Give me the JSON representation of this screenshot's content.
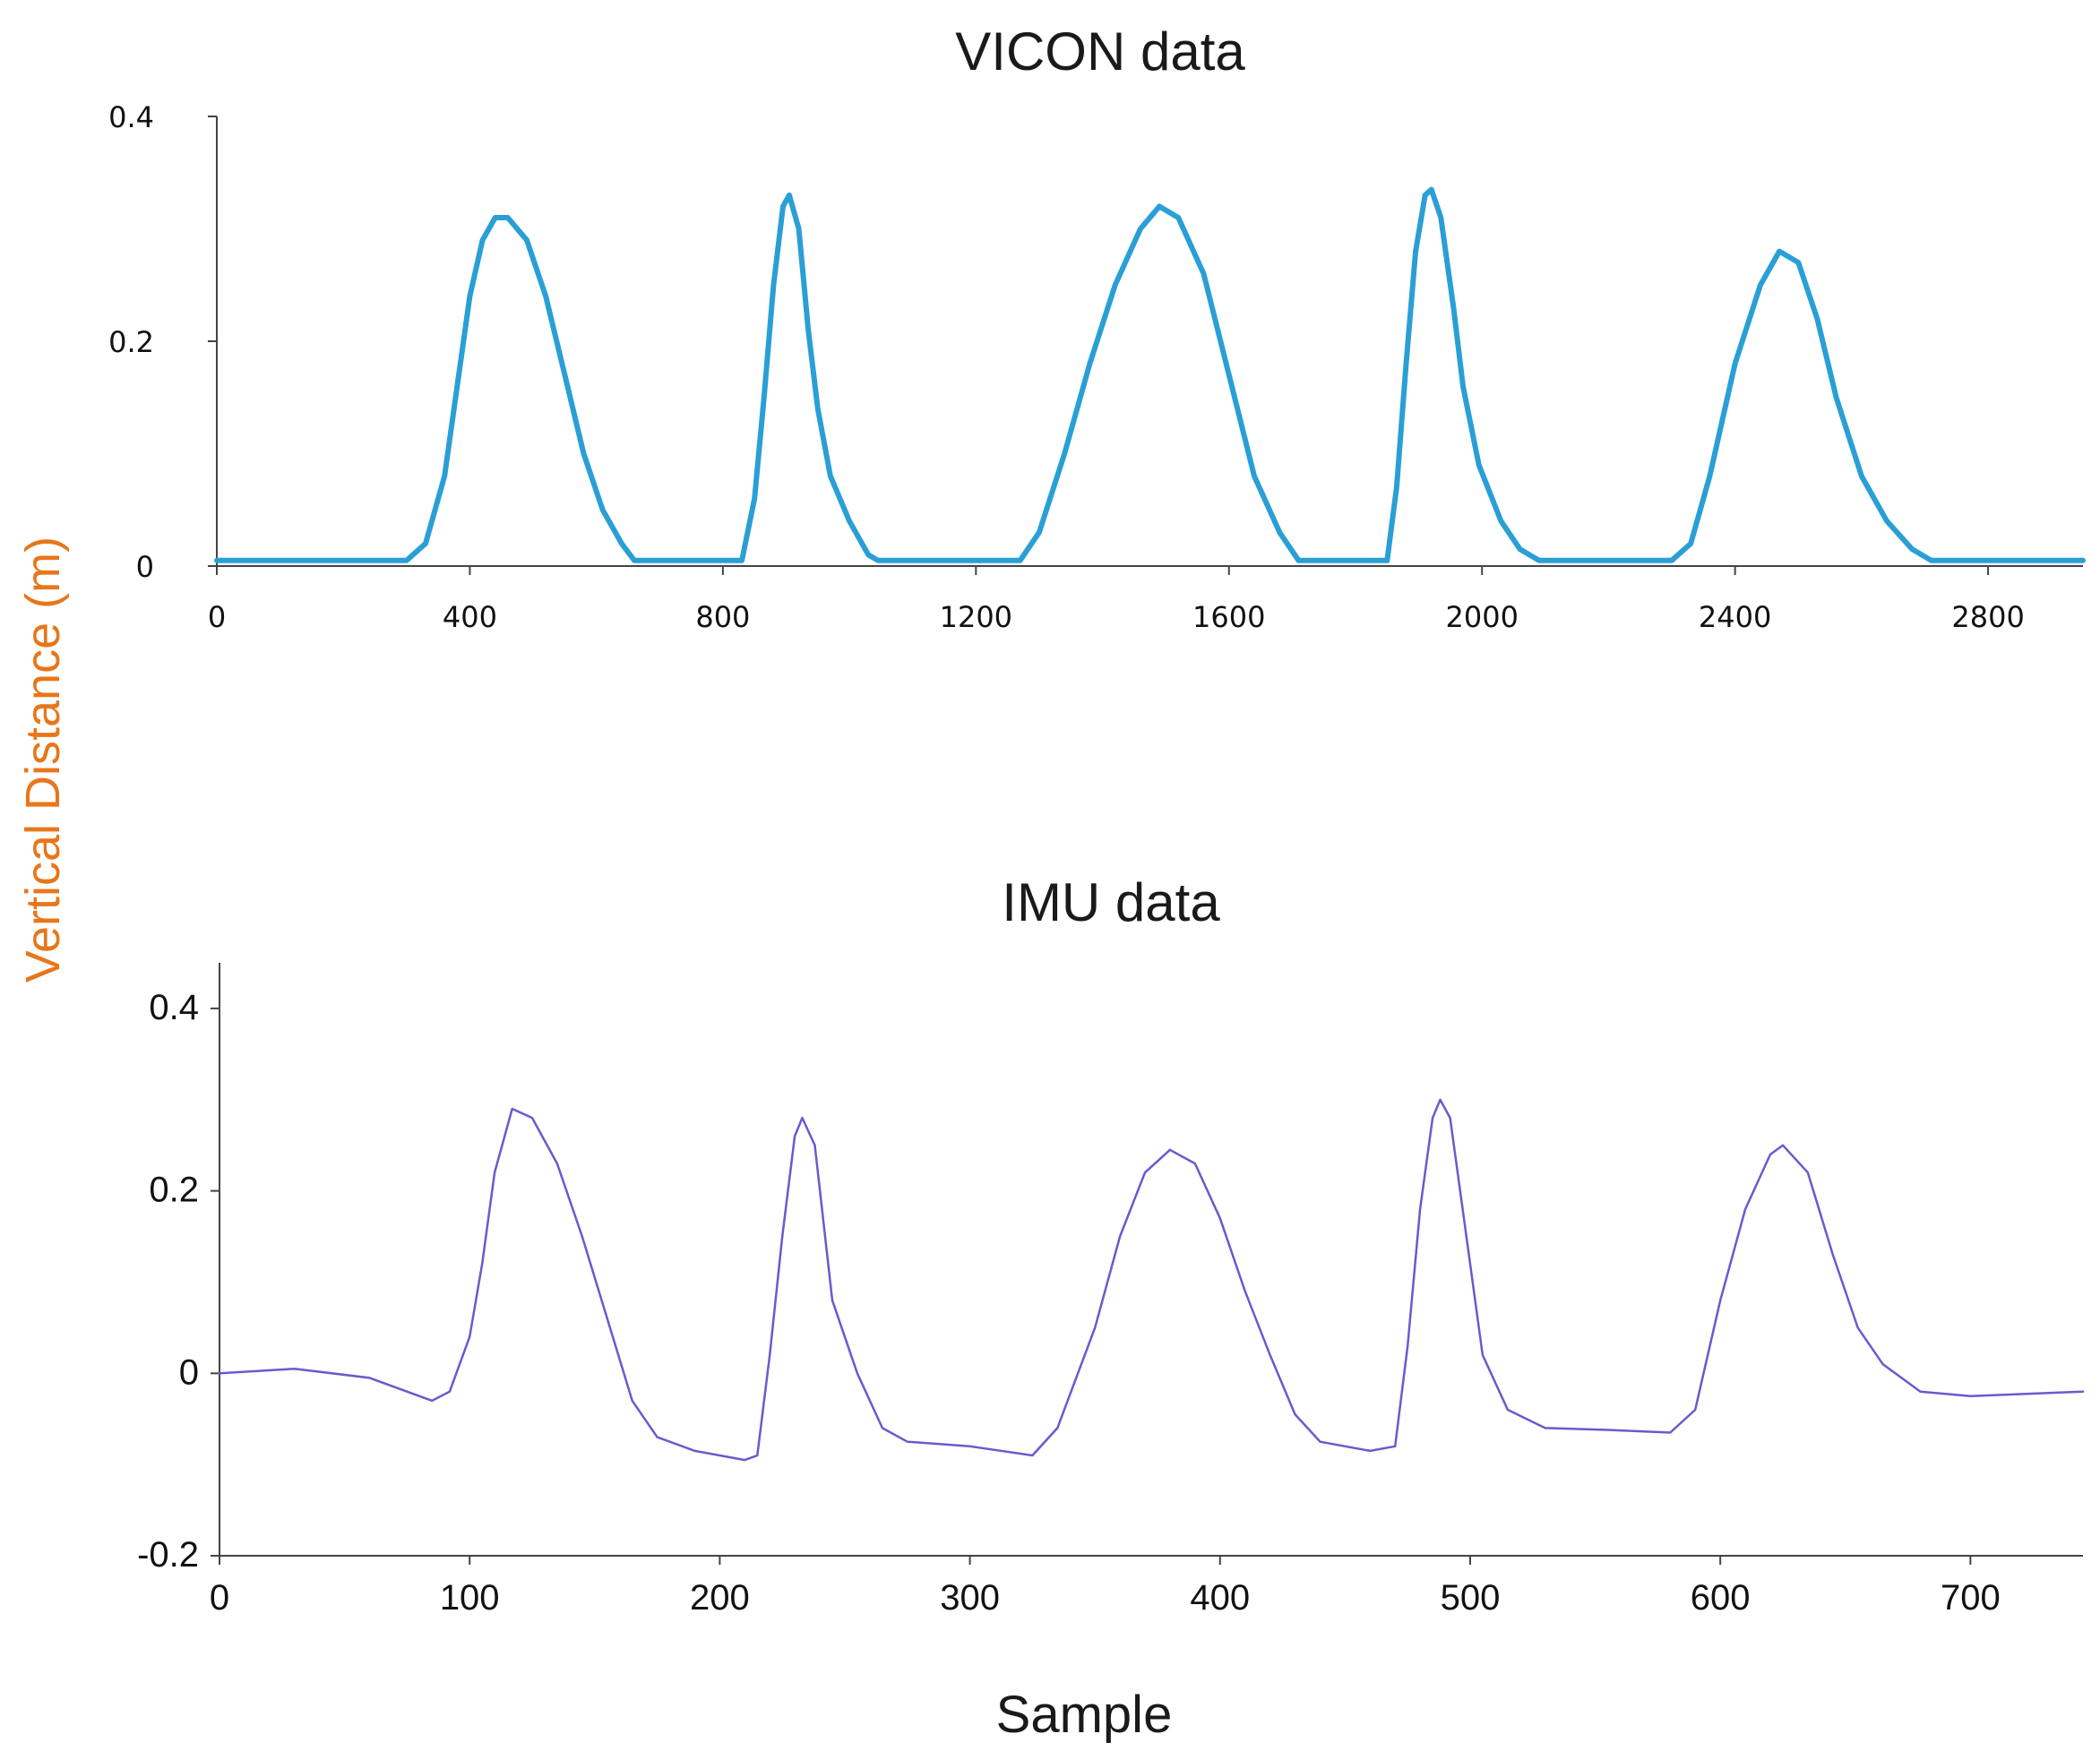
{
  "figure": {
    "shared_ylabel": "Vertical Distance (m)",
    "shared_xlabel": "Sample",
    "ylabel_color": "#e8761a"
  },
  "chart_data": [
    {
      "type": "line",
      "title": "VICON data",
      "xlabel": "",
      "ylabel": "Vertical Distance (m)",
      "xlim": [
        0,
        2950
      ],
      "ylim": [
        0,
        0.4
      ],
      "xticks": [
        0,
        400,
        800,
        1200,
        1600,
        2000,
        2400,
        2800
      ],
      "yticks": [
        0,
        0.2,
        0.4
      ],
      "xtick_labels": [
        "0",
        "400",
        "800",
        "1200",
        "1600",
        "2000",
        "2400",
        "2800"
      ],
      "ytick_labels": [
        "0",
        "0.2",
        "0.4"
      ],
      "grid": false,
      "series": [
        {
          "name": "VICON",
          "color": "#2a9fd6",
          "points": [
            [
              0,
              0.005
            ],
            [
              300,
              0.005
            ],
            [
              330,
              0.02
            ],
            [
              360,
              0.08
            ],
            [
              380,
              0.16
            ],
            [
              400,
              0.24
            ],
            [
              420,
              0.29
            ],
            [
              440,
              0.31
            ],
            [
              460,
              0.31
            ],
            [
              490,
              0.29
            ],
            [
              520,
              0.24
            ],
            [
              550,
              0.17
            ],
            [
              580,
              0.1
            ],
            [
              610,
              0.05
            ],
            [
              640,
              0.02
            ],
            [
              660,
              0.005
            ],
            [
              830,
              0.005
            ],
            [
              850,
              0.06
            ],
            [
              865,
              0.15
            ],
            [
              880,
              0.25
            ],
            [
              895,
              0.32
            ],
            [
              905,
              0.33
            ],
            [
              920,
              0.3
            ],
            [
              935,
              0.21
            ],
            [
              950,
              0.14
            ],
            [
              970,
              0.08
            ],
            [
              1000,
              0.04
            ],
            [
              1030,
              0.01
            ],
            [
              1045,
              0.005
            ],
            [
              1270,
              0.005
            ],
            [
              1300,
              0.03
            ],
            [
              1340,
              0.1
            ],
            [
              1380,
              0.18
            ],
            [
              1420,
              0.25
            ],
            [
              1460,
              0.3
            ],
            [
              1490,
              0.32
            ],
            [
              1520,
              0.31
            ],
            [
              1560,
              0.26
            ],
            [
              1600,
              0.17
            ],
            [
              1640,
              0.08
            ],
            [
              1680,
              0.03
            ],
            [
              1710,
              0.005
            ],
            [
              1850,
              0.005
            ],
            [
              1865,
              0.07
            ],
            [
              1880,
              0.18
            ],
            [
              1895,
              0.28
            ],
            [
              1910,
              0.33
            ],
            [
              1920,
              0.335
            ],
            [
              1935,
              0.31
            ],
            [
              1955,
              0.23
            ],
            [
              1970,
              0.16
            ],
            [
              1995,
              0.09
            ],
            [
              2030,
              0.04
            ],
            [
              2060,
              0.015
            ],
            [
              2090,
              0.005
            ],
            [
              2300,
              0.005
            ],
            [
              2330,
              0.02
            ],
            [
              2360,
              0.08
            ],
            [
              2400,
              0.18
            ],
            [
              2440,
              0.25
            ],
            [
              2470,
              0.28
            ],
            [
              2500,
              0.27
            ],
            [
              2530,
              0.22
            ],
            [
              2560,
              0.15
            ],
            [
              2600,
              0.08
            ],
            [
              2640,
              0.04
            ],
            [
              2680,
              0.015
            ],
            [
              2710,
              0.005
            ],
            [
              2950,
              0.005
            ]
          ]
        }
      ]
    },
    {
      "type": "line",
      "title": "IMU data",
      "xlabel": "Sample",
      "ylabel": "Vertical Distance (m)",
      "xlim": [
        0,
        745
      ],
      "ylim": [
        -0.2,
        0.45
      ],
      "xticks": [
        0,
        100,
        200,
        300,
        400,
        500,
        600,
        700
      ],
      "yticks": [
        -0.2,
        0,
        0.2,
        0.4
      ],
      "xtick_labels": [
        "0",
        "100",
        "200",
        "300",
        "400",
        "500",
        "600",
        "700"
      ],
      "ytick_labels": [
        "-0.2",
        "0",
        "0.2",
        "0.4"
      ],
      "grid": false,
      "series": [
        {
          "name": "IMU",
          "color": "#6a5acd",
          "points": [
            [
              0,
              0
            ],
            [
              30,
              0.005
            ],
            [
              60,
              -0.005
            ],
            [
              85,
              -0.03
            ],
            [
              92,
              -0.02
            ],
            [
              100,
              0.04
            ],
            [
              105,
              0.12
            ],
            [
              110,
              0.22
            ],
            [
              117,
              0.29
            ],
            [
              125,
              0.28
            ],
            [
              135,
              0.23
            ],
            [
              145,
              0.15
            ],
            [
              155,
              0.06
            ],
            [
              165,
              -0.03
            ],
            [
              175,
              -0.07
            ],
            [
              190,
              -0.085
            ],
            [
              210,
              -0.095
            ],
            [
              215,
              -0.09
            ],
            [
              220,
              0.02
            ],
            [
              225,
              0.15
            ],
            [
              230,
              0.26
            ],
            [
              233,
              0.28
            ],
            [
              238,
              0.25
            ],
            [
              245,
              0.08
            ],
            [
              255,
              0.0
            ],
            [
              265,
              -0.06
            ],
            [
              275,
              -0.075
            ],
            [
              300,
              -0.08
            ],
            [
              325,
              -0.09
            ],
            [
              335,
              -0.06
            ],
            [
              350,
              0.05
            ],
            [
              360,
              0.15
            ],
            [
              370,
              0.22
            ],
            [
              380,
              0.245
            ],
            [
              390,
              0.23
            ],
            [
              400,
              0.17
            ],
            [
              410,
              0.09
            ],
            [
              420,
              0.02
            ],
            [
              430,
              -0.045
            ],
            [
              440,
              -0.075
            ],
            [
              460,
              -0.085
            ],
            [
              470,
              -0.08
            ],
            [
              475,
              0.03
            ],
            [
              480,
              0.18
            ],
            [
              485,
              0.28
            ],
            [
              488,
              0.3
            ],
            [
              492,
              0.28
            ],
            [
              497,
              0.18
            ],
            [
              505,
              0.02
            ],
            [
              515,
              -0.04
            ],
            [
              530,
              -0.06
            ],
            [
              555,
              -0.062
            ],
            [
              580,
              -0.065
            ],
            [
              590,
              -0.04
            ],
            [
              600,
              0.08
            ],
            [
              610,
              0.18
            ],
            [
              620,
              0.24
            ],
            [
              625,
              0.25
            ],
            [
              635,
              0.22
            ],
            [
              645,
              0.13
            ],
            [
              655,
              0.05
            ],
            [
              665,
              0.01
            ],
            [
              680,
              -0.02
            ],
            [
              700,
              -0.025
            ],
            [
              745,
              -0.02
            ]
          ]
        }
      ]
    }
  ]
}
